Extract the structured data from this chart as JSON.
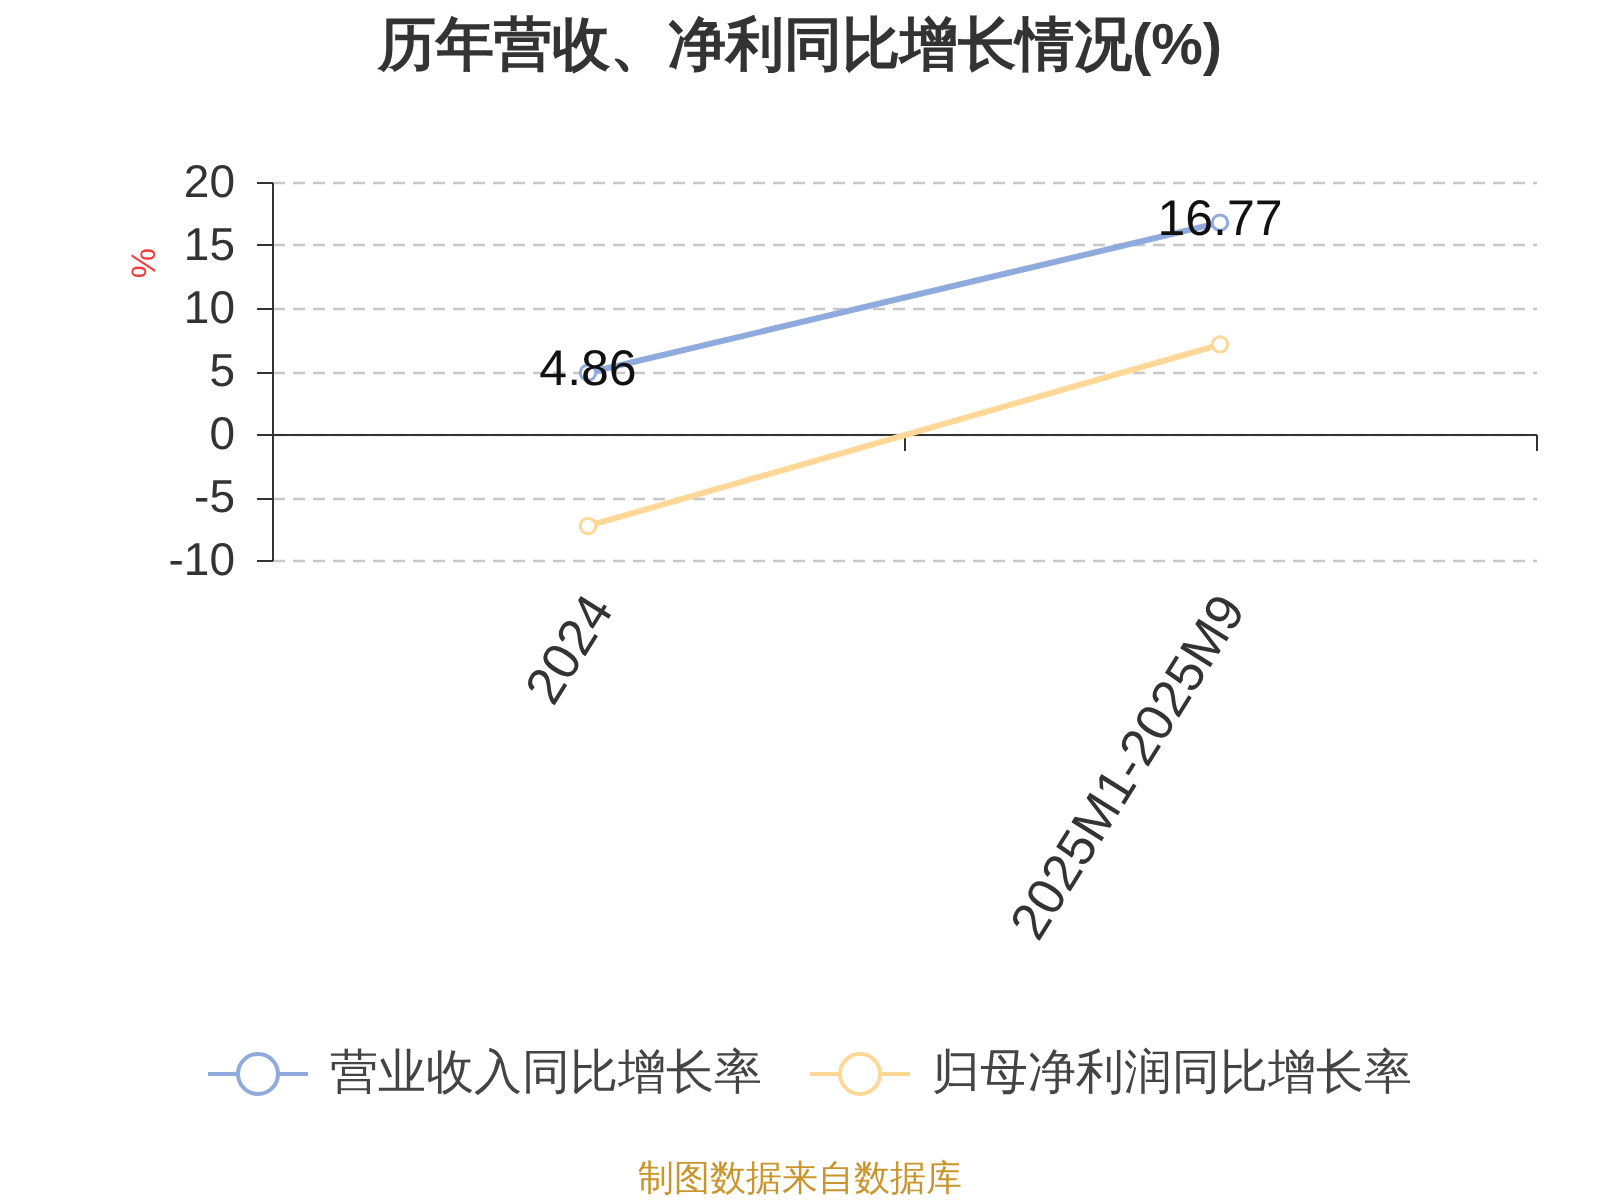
{
  "chart_data": {
    "type": "line",
    "title": "历年营收、净利同比增长情况(%)",
    "ylabel": "%",
    "categories": [
      "2024",
      "2025M1-2025M9"
    ],
    "series": [
      {
        "name": "营业收入同比增长率",
        "color": "#8faadc",
        "values": [
          4.86,
          16.77
        ],
        "value_labels": [
          "4.86",
          "16.77"
        ]
      },
      {
        "name": "归母净利润同比增长率",
        "color": "#ffd797",
        "values": [
          -7.3,
          7.1
        ]
      }
    ],
    "ylim": [
      -10,
      20
    ],
    "yticks": [
      -10,
      -5,
      0,
      5,
      10,
      15,
      20
    ],
    "grid": "y",
    "legend": "bottom",
    "marker": "circle",
    "annotations": [
      "制图数据来自数据库"
    ]
  }
}
